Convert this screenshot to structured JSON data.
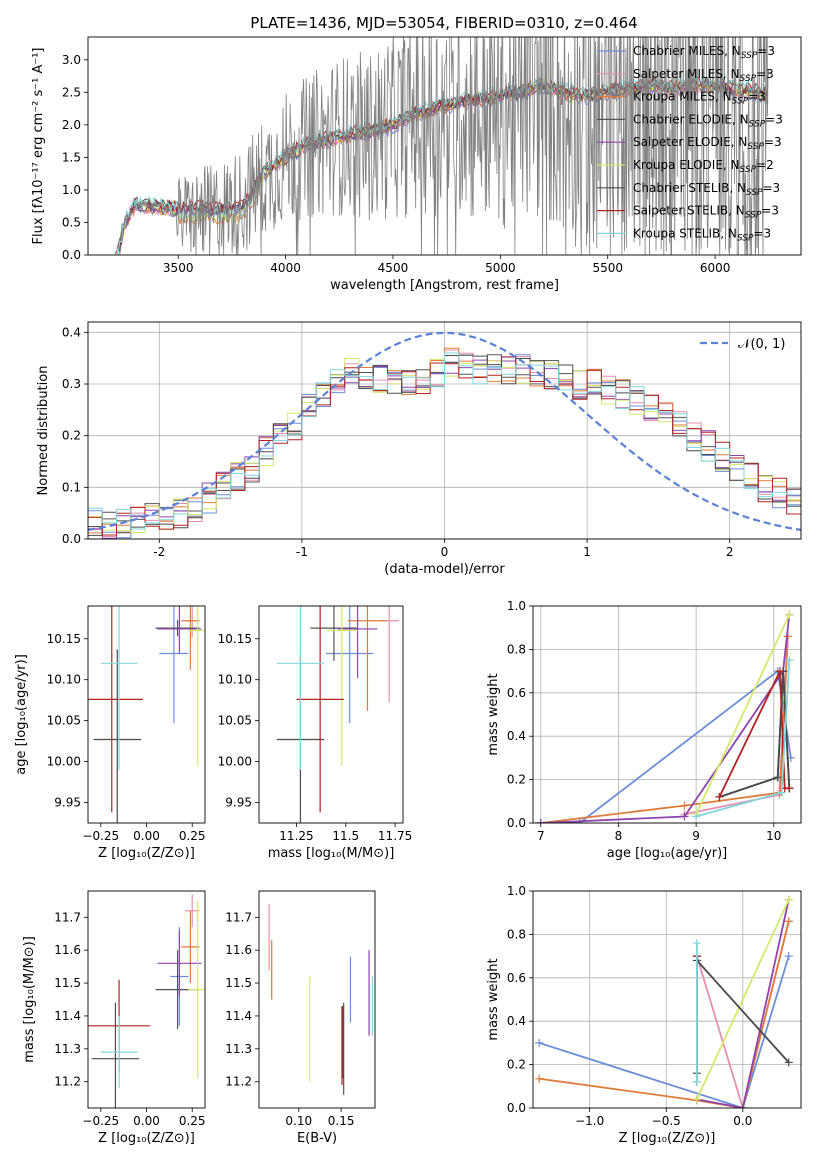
{
  "figure_title": "PLATE=1436, MJD=53054, FIBERID=0310, z=0.464",
  "series_colors": [
    "#6a8fd8",
    "#e58fb0",
    "#e07b39",
    "#545454",
    "#8e44ad",
    "#d4e86a",
    "#4a4a4a",
    "#b22222",
    "#7fd6dc"
  ],
  "chart_data": [
    {
      "id": "spectrum",
      "type": "line",
      "title": "PLATE=1436, MJD=53054, FIBERID=0310, z=0.464",
      "xlabel": "wavelength [Angstrom, rest frame]",
      "ylabel": "Flux [fλ10⁻¹⁷ erg cm⁻² s⁻¹ A⁻¹]",
      "xlim": [
        3080,
        6400
      ],
      "ylim": [
        0,
        3.35
      ],
      "xticks": [
        3500,
        4000,
        4500,
        5000,
        5500,
        6000
      ],
      "yticks": [
        0.0,
        0.5,
        1.0,
        1.5,
        2.0,
        2.5,
        3.0
      ],
      "legend_position": "top-right",
      "legend": [
        "Chabrier MILES, N_SSP=3",
        "Salpeter MILES, N_SSP=3",
        "Kroupa MILES, N_SSP=3",
        "Chabrier ELODIE, N_SSP=3",
        "Salpeter ELODIE, N_SSP=3",
        "Kroupa ELODIE, N_SSP=2",
        "Chabrier STELIB, N_SSP=3",
        "Salpeter STELIB, N_SSP=3",
        "Kroupa STELIB, N_SSP=3"
      ],
      "data_series": {
        "name": "data",
        "x": [
          3210,
          3240,
          3300,
          3400,
          3500,
          3600,
          3700,
          3800,
          3900,
          4000,
          4100,
          4200,
          4300,
          4400,
          4500,
          4600,
          4700,
          4800,
          4900,
          5000,
          5100,
          5200,
          5300,
          5400,
          5500,
          5600,
          5700,
          5800,
          5900,
          6000,
          6100,
          6200,
          6250
        ],
        "y": [
          0.0,
          0.45,
          0.75,
          0.78,
          0.6,
          0.65,
          0.7,
          0.8,
          1.2,
          1.5,
          1.65,
          1.8,
          1.85,
          1.8,
          2.0,
          2.1,
          2.2,
          2.3,
          2.2,
          2.2,
          2.4,
          2.5,
          2.3,
          2.2,
          2.3,
          2.4,
          2.35,
          2.5,
          2.4,
          2.6,
          2.3,
          2.4,
          2.3
        ]
      },
      "model_envelope": {
        "x": [
          3220,
          3260,
          3300,
          3400,
          3500,
          3600,
          3700,
          3800,
          3900,
          4000,
          4100,
          4200,
          4300,
          4400,
          4500,
          4600,
          4700,
          4800,
          4900,
          5000,
          5100,
          5200,
          5300,
          5400,
          5500,
          5600,
          5700,
          5800,
          5900,
          6000,
          6100,
          6200,
          6250
        ],
        "y": [
          0.0,
          0.55,
          0.78,
          0.75,
          0.7,
          0.72,
          0.68,
          0.72,
          1.25,
          1.5,
          1.7,
          1.78,
          1.85,
          1.9,
          2.0,
          2.15,
          2.25,
          2.35,
          2.4,
          2.45,
          2.5,
          2.6,
          2.5,
          2.45,
          2.5,
          2.55,
          2.6,
          2.55,
          2.6,
          2.6,
          2.55,
          2.5,
          2.45
        ]
      }
    },
    {
      "id": "residuals",
      "type": "line",
      "xlabel": "(data-model)/error",
      "ylabel": "Normed distribution",
      "xlim": [
        -2.5,
        2.5
      ],
      "ylim": [
        0,
        0.42
      ],
      "xticks": [
        -2,
        -1,
        0,
        1,
        2
      ],
      "yticks": [
        0.0,
        0.1,
        0.2,
        0.3,
        0.4
      ],
      "grid": true,
      "legend_position": "top-right",
      "reference_curve": {
        "name": "𝒩(0, 1)",
        "mean": 0,
        "sigma": 1,
        "style": "dashed"
      },
      "histogram_bin_width": 0.1,
      "histogram_envelope": [
        0.03,
        0.03,
        0.03,
        0.035,
        0.04,
        0.045,
        0.05,
        0.06,
        0.08,
        0.1,
        0.12,
        0.14,
        0.17,
        0.2,
        0.22,
        0.25,
        0.28,
        0.3,
        0.32,
        0.32,
        0.31,
        0.3,
        0.3,
        0.31,
        0.32,
        0.34,
        0.34,
        0.33,
        0.33,
        0.33,
        0.33,
        0.32,
        0.32,
        0.31,
        0.3,
        0.3,
        0.29,
        0.28,
        0.27,
        0.25,
        0.24,
        0.22,
        0.2,
        0.18,
        0.16,
        0.14,
        0.12,
        0.1,
        0.09,
        0.07
      ]
    },
    {
      "id": "age_vs_Z",
      "type": "scatter",
      "xlabel": "Z [log₁₀(Z/Z⊙)]",
      "ylabel": "age  [log₁₀(age/yr)]",
      "xlim": [
        -0.32,
        0.32
      ],
      "ylim": [
        9.925,
        10.19
      ],
      "xticks": [
        -0.25,
        0.0,
        0.25
      ],
      "xticklabels": [
        "−0.25",
        "0.00",
        "0.25"
      ],
      "yticks": [
        9.95,
        10.0,
        10.05,
        10.1,
        10.15
      ],
      "points": [
        {
          "x": 0.15,
          "y": 10.132,
          "xerr": 0.08,
          "yerr": 0.085,
          "color_index": 0
        },
        {
          "x": 0.25,
          "y": 10.172,
          "xerr": 0.04,
          "yerr": 0.02,
          "color_index": 1
        },
        {
          "x": 0.24,
          "y": 10.172,
          "xerr": 0.05,
          "yerr": 0.06,
          "color_index": 2
        },
        {
          "x": 0.17,
          "y": 10.163,
          "xerr": 0.12,
          "yerr": 0.01,
          "color_index": 3
        },
        {
          "x": 0.18,
          "y": 10.162,
          "xerr": 0.12,
          "yerr": 0.03,
          "color_index": 4
        },
        {
          "x": 0.28,
          "y": 10.16,
          "xerr": 0.05,
          "yerr": 0.165,
          "color_index": 5
        },
        {
          "x": -0.16,
          "y": 10.027,
          "xerr": 0.13,
          "yerr": 0.11,
          "color_index": 6
        },
        {
          "x": -0.19,
          "y": 10.076,
          "xerr": 0.17,
          "yerr": 0.138,
          "color_index": 7
        },
        {
          "x": -0.15,
          "y": 10.12,
          "xerr": 0.1,
          "yerr": 0.13,
          "color_index": 8
        }
      ]
    },
    {
      "id": "age_vs_mass",
      "type": "scatter",
      "xlabel": "mass [log₁₀(M/M⊙)]",
      "ylabel": "",
      "xlim": [
        11.06,
        11.79
      ],
      "ylim": [
        9.925,
        10.19
      ],
      "xticks": [
        11.25,
        11.5,
        11.75
      ],
      "yticks": [
        9.95,
        10.0,
        10.05,
        10.1,
        10.15
      ],
      "points": [
        {
          "x": 11.52,
          "y": 10.132,
          "xerr": 0.12,
          "yerr": 0.085,
          "color_index": 0
        },
        {
          "x": 11.72,
          "y": 10.172,
          "xerr": 0.05,
          "yerr": 0.1,
          "color_index": 1
        },
        {
          "x": 11.61,
          "y": 10.172,
          "xerr": 0.1,
          "yerr": 0.11,
          "color_index": 2
        },
        {
          "x": 11.44,
          "y": 10.163,
          "xerr": 0.12,
          "yerr": 0.04,
          "color_index": 3
        },
        {
          "x": 11.56,
          "y": 10.162,
          "xerr": 0.1,
          "yerr": 0.06,
          "color_index": 4
        },
        {
          "x": 11.48,
          "y": 10.16,
          "xerr": 0.08,
          "yerr": 0.165,
          "color_index": 5
        },
        {
          "x": 11.27,
          "y": 10.027,
          "xerr": 0.12,
          "yerr": 0.11,
          "color_index": 6
        },
        {
          "x": 11.37,
          "y": 10.076,
          "xerr": 0.12,
          "yerr": 0.138,
          "color_index": 7
        },
        {
          "x": 11.27,
          "y": 10.12,
          "xerr": 0.12,
          "yerr": 0.13,
          "color_index": 8
        }
      ]
    },
    {
      "id": "mass_weight_vs_age",
      "type": "line",
      "xlabel": "age  [log₁₀(age/yr)]",
      "ylabel": "mass weight",
      "xlim": [
        6.9,
        10.35
      ],
      "ylim": [
        0,
        1.0
      ],
      "xticks": [
        7,
        8,
        9,
        10
      ],
      "yticks": [
        0.0,
        0.2,
        0.4,
        0.6,
        0.8,
        1.0
      ],
      "grid": true,
      "series": [
        {
          "color_index": 0,
          "x": [
            7.0,
            7.5,
            10.05,
            10.22
          ],
          "y": [
            0.0,
            0.0,
            0.7,
            0.3
          ]
        },
        {
          "color_index": 1,
          "x": [
            8.85,
            10.07,
            10.18
          ],
          "y": [
            0.04,
            0.13,
            0.86
          ]
        },
        {
          "color_index": 2,
          "x": [
            7.0,
            8.85,
            10.08,
            10.18
          ],
          "y": [
            0.0,
            0.08,
            0.14,
            0.86
          ]
        },
        {
          "color_index": 3,
          "x": [
            9.3,
            10.05,
            10.12,
            10.2
          ],
          "y": [
            0.12,
            0.21,
            0.7,
            0.16
          ]
        },
        {
          "color_index": 4,
          "x": [
            7.0,
            8.85,
            10.12,
            10.2
          ],
          "y": [
            0.0,
            0.03,
            0.7,
            0.96
          ]
        },
        {
          "color_index": 5,
          "x": [
            9.0,
            10.2
          ],
          "y": [
            0.04,
            0.96
          ]
        },
        {
          "color_index": 6,
          "x": [
            9.3,
            10.05,
            10.12,
            10.2
          ],
          "y": [
            0.12,
            0.21,
            0.7,
            0.16
          ]
        },
        {
          "color_index": 7,
          "x": [
            9.3,
            10.08,
            10.14,
            10.2
          ],
          "y": [
            0.12,
            0.7,
            0.16,
            0.16
          ]
        },
        {
          "color_index": 8,
          "x": [
            9.0,
            10.1,
            10.2
          ],
          "y": [
            0.03,
            0.14,
            0.75
          ]
        }
      ]
    },
    {
      "id": "mass_vs_Z",
      "type": "scatter",
      "xlabel": "Z [log₁₀(Z/Z⊙)]",
      "ylabel": "mass [log₁₀(M/M⊙)]",
      "xlim": [
        -0.32,
        0.32
      ],
      "ylim": [
        11.12,
        11.78
      ],
      "xticks": [
        -0.25,
        0.0,
        0.25
      ],
      "xticklabels": [
        "−0.25",
        "0.00",
        "0.25"
      ],
      "yticks": [
        11.2,
        11.3,
        11.4,
        11.5,
        11.6,
        11.7
      ],
      "points": [
        {
          "x": 0.18,
          "y": 11.52,
          "xerr": 0.05,
          "yerr": 0.15,
          "color_index": 0
        },
        {
          "x": 0.25,
          "y": 11.72,
          "xerr": 0.04,
          "yerr": 0.05,
          "color_index": 1
        },
        {
          "x": 0.24,
          "y": 11.61,
          "xerr": 0.05,
          "yerr": 0.11,
          "color_index": 2
        },
        {
          "x": 0.17,
          "y": 11.48,
          "xerr": 0.12,
          "yerr": 0.12,
          "color_index": 3
        },
        {
          "x": 0.18,
          "y": 11.56,
          "xerr": 0.12,
          "yerr": 0.1,
          "color_index": 4
        },
        {
          "x": 0.28,
          "y": 11.48,
          "xerr": 0.05,
          "yerr": 0.27,
          "color_index": 5
        },
        {
          "x": -0.17,
          "y": 11.27,
          "xerr": 0.13,
          "yerr": 0.17,
          "color_index": 6
        },
        {
          "x": -0.15,
          "y": 11.37,
          "xerr": 0.17,
          "yerr": 0.14,
          "color_index": 7
        },
        {
          "x": -0.15,
          "y": 11.29,
          "xerr": 0.1,
          "yerr": 0.11,
          "color_index": 8
        }
      ]
    },
    {
      "id": "mass_vs_EBV",
      "type": "scatter",
      "xlabel": "E(B-V)",
      "ylabel": "",
      "xlim": [
        0.053,
        0.19
      ],
      "ylim": [
        11.12,
        11.78
      ],
      "xticks": [
        0.1,
        0.15
      ],
      "xticklabels": [
        "0.10",
        "0.15"
      ],
      "yticks": [
        11.2,
        11.3,
        11.4,
        11.5,
        11.6,
        11.7
      ],
      "points": [
        {
          "x": 0.161,
          "y": 11.48,
          "xerr": 0,
          "yerr": 0.1,
          "color_index": 0
        },
        {
          "x": 0.065,
          "y": 11.64,
          "xerr": 0,
          "yerr": 0.1,
          "color_index": 1
        },
        {
          "x": 0.068,
          "y": 11.54,
          "xerr": 0,
          "yerr": 0.09,
          "color_index": 2
        },
        {
          "x": 0.153,
          "y": 11.3,
          "xerr": 0,
          "yerr": 0.14,
          "color_index": 3
        },
        {
          "x": 0.183,
          "y": 11.47,
          "xerr": 0,
          "yerr": 0.13,
          "color_index": 4
        },
        {
          "x": 0.113,
          "y": 11.36,
          "xerr": 0,
          "yerr": 0.16,
          "color_index": 5
        },
        {
          "x": 0.152,
          "y": 11.32,
          "xerr": 0,
          "yerr": 0.11,
          "color_index": 6
        },
        {
          "x": 0.151,
          "y": 11.31,
          "xerr": 0,
          "yerr": 0.12,
          "color_index": 7
        },
        {
          "x": 0.187,
          "y": 11.43,
          "xerr": 0,
          "yerr": 0.09,
          "color_index": 8
        }
      ]
    },
    {
      "id": "mass_weight_vs_Z",
      "type": "line",
      "xlabel": "Z [log₁₀(Z/Z⊙)]",
      "ylabel": "mass weight",
      "xlim": [
        -1.37,
        0.38
      ],
      "ylim": [
        0,
        1.0
      ],
      "xticks": [
        -1.0,
        -0.5,
        0.0
      ],
      "xticklabels": [
        "−1.0",
        "−0.5",
        "0.0"
      ],
      "yticks": [
        0.0,
        0.2,
        0.4,
        0.6,
        0.8,
        1.0
      ],
      "grid": true,
      "series": [
        {
          "color_index": 0,
          "x": [
            -1.33,
            0.0,
            0.3
          ],
          "y": [
            0.3,
            0.0,
            0.7
          ]
        },
        {
          "color_index": 1,
          "x": [
            -0.3,
            0.0,
            0.3
          ],
          "y": [
            0.7,
            0.0,
            0.86
          ]
        },
        {
          "color_index": 2,
          "x": [
            -1.33,
            -0.3,
            0.0,
            0.3
          ],
          "y": [
            0.135,
            0.035,
            0.0,
            0.86
          ]
        },
        {
          "color_index": 3,
          "x": [
            -0.3,
            -0.3
          ],
          "y": [
            0.16,
            0.7
          ]
        },
        {
          "color_index": 4,
          "x": [
            -0.3,
            0.0,
            0.3
          ],
          "y": [
            0.04,
            0.0,
            0.96
          ]
        },
        {
          "color_index": 5,
          "x": [
            -0.3,
            0.3
          ],
          "y": [
            0.04,
            0.96
          ]
        },
        {
          "color_index": 6,
          "x": [
            -0.3,
            0.3
          ],
          "y": [
            0.68,
            0.21
          ]
        },
        {
          "color_index": 7,
          "x": [
            -0.3,
            -0.3
          ],
          "y": [
            0.12,
            0.7
          ]
        },
        {
          "color_index": 8,
          "x": [
            -0.3,
            -0.3
          ],
          "y": [
            0.12,
            0.76
          ]
        }
      ]
    }
  ]
}
